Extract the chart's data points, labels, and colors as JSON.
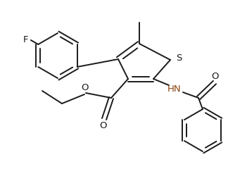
{
  "bg_color": "#ffffff",
  "line_color": "#1a1a1a",
  "S_color": "#1a1a1a",
  "HN_color": "#8B4513",
  "O_color": "#4169aa",
  "line_width": 1.4,
  "figsize": [
    3.51,
    2.57
  ],
  "dpi": 100,
  "xlim": [
    0.0,
    3.51
  ],
  "ylim": [
    0.0,
    2.57
  ]
}
